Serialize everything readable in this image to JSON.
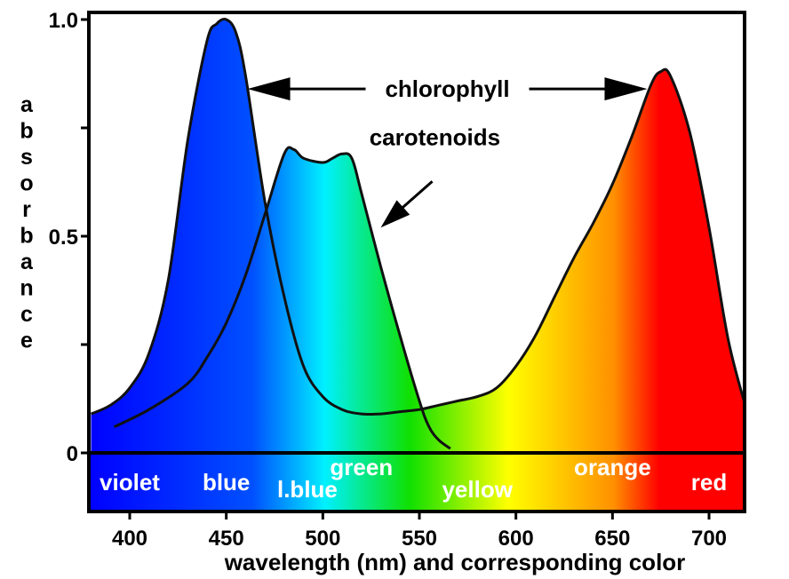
{
  "chart_data": {
    "type": "area",
    "xlabel": "wavelength (nm) and corresponding color",
    "ylabel": "absorbance",
    "xlim": [
      380,
      720
    ],
    "ylim": [
      0,
      1.0
    ],
    "x_ticks": [
      400,
      450,
      500,
      550,
      600,
      650,
      700
    ],
    "y_ticks": [
      {
        "value": 0,
        "label": "0"
      },
      {
        "value": 0.25,
        "label": ""
      },
      {
        "value": 0.5,
        "label": "0.5"
      },
      {
        "value": 0.75,
        "label": ""
      },
      {
        "value": 1.0,
        "label": "1.0"
      }
    ],
    "grid": false,
    "series": [
      {
        "name": "chlorophyll",
        "x": [
          380,
          390,
          400,
          410,
          420,
          430,
          440,
          445,
          450,
          455,
          460,
          470,
          480,
          490,
          500,
          510,
          520,
          530,
          540,
          550,
          560,
          570,
          580,
          590,
          600,
          610,
          620,
          630,
          640,
          650,
          660,
          670,
          675,
          680,
          690,
          700,
          710,
          720
        ],
        "y": [
          0.09,
          0.11,
          0.15,
          0.23,
          0.4,
          0.72,
          0.95,
          0.99,
          1.0,
          0.97,
          0.87,
          0.58,
          0.36,
          0.2,
          0.13,
          0.1,
          0.09,
          0.09,
          0.095,
          0.1,
          0.11,
          0.12,
          0.13,
          0.15,
          0.2,
          0.27,
          0.36,
          0.45,
          0.53,
          0.62,
          0.73,
          0.85,
          0.88,
          0.87,
          0.74,
          0.52,
          0.26,
          0.09
        ]
      },
      {
        "name": "carotenoids",
        "x": [
          392,
          410,
          430,
          440,
          450,
          460,
          470,
          480,
          485,
          490,
          500,
          505,
          510,
          515,
          520,
          530,
          540,
          550,
          555,
          560,
          566
        ],
        "y": [
          0.06,
          0.1,
          0.16,
          0.22,
          0.3,
          0.41,
          0.55,
          0.69,
          0.7,
          0.68,
          0.67,
          0.68,
          0.69,
          0.68,
          0.6,
          0.43,
          0.27,
          0.12,
          0.06,
          0.03,
          0.01
        ]
      }
    ],
    "color_bands": [
      {
        "label": "violet",
        "x": 400
      },
      {
        "label": "blue",
        "x": 450
      },
      {
        "label": "l.blue",
        "x": 492
      },
      {
        "label": "green",
        "x": 520
      },
      {
        "label": "yellow",
        "x": 580
      },
      {
        "label": "orange",
        "x": 650
      },
      {
        "label": "red",
        "x": 700
      }
    ],
    "annotations": [
      {
        "text": "chlorophyll",
        "type": "double-arrow",
        "from_x": 461,
        "to_x": 668,
        "y": 0.84
      },
      {
        "text": "carotenoids",
        "type": "arrow",
        "text_x": 558,
        "text_y": 0.71,
        "target_x": 530,
        "target_y": 0.52
      }
    ],
    "colors": {
      "violet": "#0000ff",
      "blue": "#0050ff",
      "light_blue": "#00f0ff",
      "green": "#10e000",
      "yellow": "#ffff00",
      "orange": "#ff9000",
      "red": "#ff0000"
    }
  }
}
